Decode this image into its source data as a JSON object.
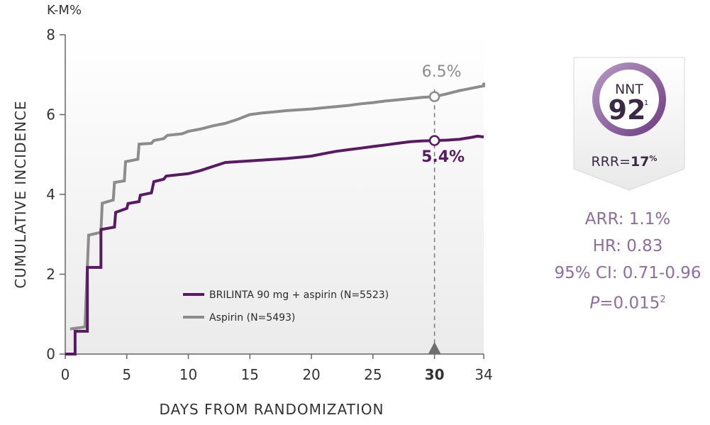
{
  "chart_data": {
    "type": "line",
    "ylabel_unit": "K-M%",
    "ylabel": "CUMULATIVE INCIDENCE",
    "xlabel": "DAYS FROM RANDOMIZATION",
    "xlim": [
      0,
      34
    ],
    "ylim": [
      0,
      8
    ],
    "x_ticks": [
      "0",
      "5",
      "10",
      "15",
      "20",
      "25",
      "30",
      "34"
    ],
    "x_tick_values": [
      0,
      5,
      10,
      15,
      20,
      25,
      30,
      34
    ],
    "y_ticks": [
      "0",
      "2",
      "4",
      "6",
      "8"
    ],
    "y_tick_values": [
      0,
      2,
      4,
      6,
      8
    ],
    "grid": false,
    "legend_position": "bottom-center",
    "reference_day": 30,
    "series": [
      {
        "name": "BRILINTA 90 mg + aspirin (N=5523)",
        "color": "#5a1a63",
        "endpoint_label": "5.4%",
        "endpoint_value": 5.35,
        "points": [
          [
            0,
            0
          ],
          [
            0.8,
            0
          ],
          [
            0.8,
            0.57
          ],
          [
            1.8,
            0.57
          ],
          [
            1.8,
            2.17
          ],
          [
            2.9,
            2.17
          ],
          [
            2.9,
            3.12
          ],
          [
            4.0,
            3.18
          ],
          [
            4.1,
            3.55
          ],
          [
            5.0,
            3.65
          ],
          [
            5.1,
            3.77
          ],
          [
            6.0,
            3.82
          ],
          [
            6.1,
            3.98
          ],
          [
            7.0,
            4.04
          ],
          [
            7.2,
            4.32
          ],
          [
            8.0,
            4.38
          ],
          [
            8.2,
            4.46
          ],
          [
            10.0,
            4.52
          ],
          [
            11.0,
            4.6
          ],
          [
            12.0,
            4.7
          ],
          [
            13.0,
            4.8
          ],
          [
            14.0,
            4.82
          ],
          [
            15.0,
            4.84
          ],
          [
            16.0,
            4.86
          ],
          [
            17.0,
            4.88
          ],
          [
            18.0,
            4.9
          ],
          [
            19.0,
            4.93
          ],
          [
            20.0,
            4.96
          ],
          [
            21.0,
            5.02
          ],
          [
            22.0,
            5.08
          ],
          [
            23.0,
            5.12
          ],
          [
            24.0,
            5.16
          ],
          [
            25.0,
            5.2
          ],
          [
            26.0,
            5.24
          ],
          [
            27.0,
            5.28
          ],
          [
            28.0,
            5.32
          ],
          [
            29.0,
            5.34
          ],
          [
            30.0,
            5.35
          ],
          [
            31.0,
            5.36
          ],
          [
            32.0,
            5.38
          ],
          [
            33.0,
            5.43
          ],
          [
            33.5,
            5.46
          ],
          [
            34.0,
            5.44
          ]
        ]
      },
      {
        "name": "Aspirin (N=5493)",
        "color": "#8c8c8c",
        "endpoint_label": "6.5%",
        "endpoint_value": 6.45,
        "points": [
          [
            0.4,
            0.63
          ],
          [
            1.6,
            0.68
          ],
          [
            1.9,
            2.98
          ],
          [
            2.9,
            3.05
          ],
          [
            3.0,
            3.78
          ],
          [
            3.9,
            3.86
          ],
          [
            4.0,
            4.3
          ],
          [
            4.8,
            4.34
          ],
          [
            4.9,
            4.82
          ],
          [
            5.9,
            4.88
          ],
          [
            6.0,
            5.26
          ],
          [
            7.0,
            5.28
          ],
          [
            7.2,
            5.35
          ],
          [
            8.0,
            5.4
          ],
          [
            8.3,
            5.48
          ],
          [
            9.5,
            5.52
          ],
          [
            10.0,
            5.58
          ],
          [
            11.0,
            5.64
          ],
          [
            12.0,
            5.72
          ],
          [
            13.0,
            5.78
          ],
          [
            14.0,
            5.88
          ],
          [
            15.0,
            6.0
          ],
          [
            16.0,
            6.04
          ],
          [
            17.0,
            6.07
          ],
          [
            18.0,
            6.1
          ],
          [
            19.0,
            6.12
          ],
          [
            20.0,
            6.14
          ],
          [
            21.0,
            6.17
          ],
          [
            22.0,
            6.2
          ],
          [
            23.0,
            6.23
          ],
          [
            24.0,
            6.27
          ],
          [
            25.0,
            6.3
          ],
          [
            26.0,
            6.34
          ],
          [
            27.0,
            6.37
          ],
          [
            28.0,
            6.4
          ],
          [
            29.0,
            6.43
          ],
          [
            30.0,
            6.45
          ],
          [
            31.0,
            6.52
          ],
          [
            32.0,
            6.6
          ],
          [
            33.0,
            6.66
          ],
          [
            34.0,
            6.72
          ],
          [
            34.0,
            6.8
          ]
        ]
      }
    ]
  },
  "nnt": {
    "label": "NNT",
    "value": "92",
    "superscript": "1",
    "rrr_prefix": "RRR=",
    "rrr_value": "17",
    "rrr_unit": "%"
  },
  "stats": {
    "arr": "ARR: 1.1%",
    "hr": "HR: 0.83",
    "ci": "95% CI: 0.71-0.96",
    "p_letter": "P",
    "p_value": "=0.015",
    "p_superscript": "2"
  }
}
